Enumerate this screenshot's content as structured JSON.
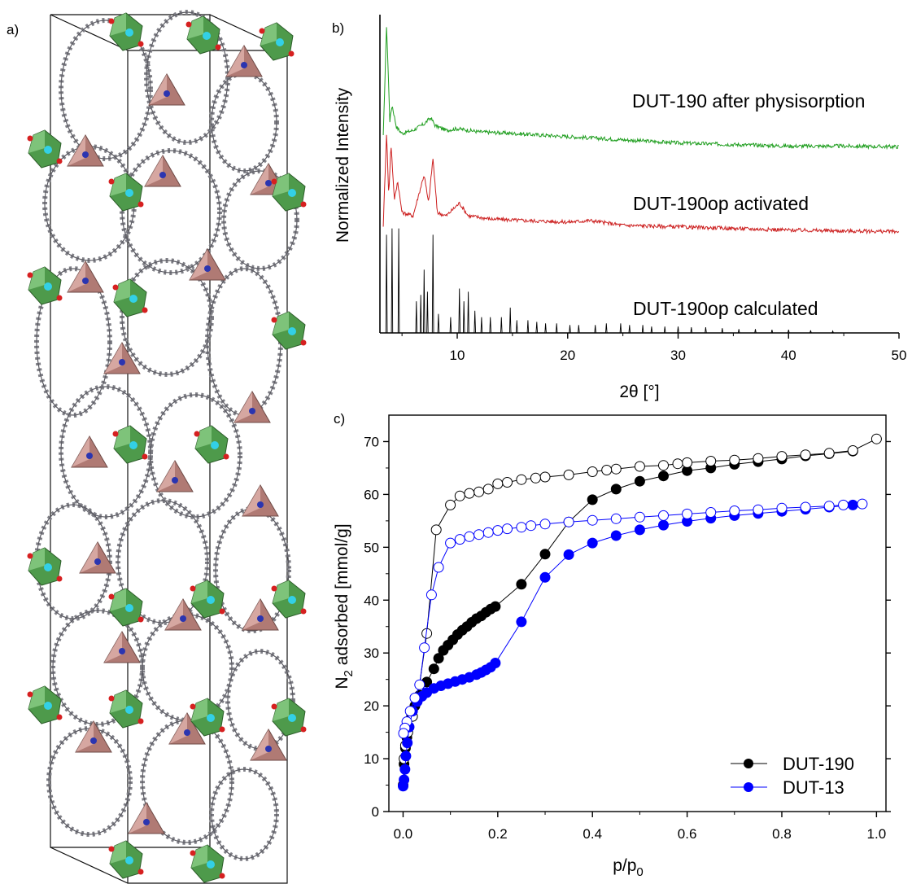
{
  "panel_labels": {
    "a": "a)",
    "b": "b)",
    "c": "c)"
  },
  "structure": {
    "colors": {
      "zr_octahedron": "#4e9a4b",
      "zr_face": "#8fd08a",
      "n_tetrahedron": "#b07a74",
      "n_face": "#f0c4c0",
      "carbon": "#7f7f86",
      "oxygen": "#d62020",
      "metal": "#33d0e6",
      "nitrogen": "#2b35b0",
      "cell_line": "#111111"
    }
  },
  "chart_data": [
    {
      "panel": "b)",
      "type": "line",
      "xlabel": "2θ [°]",
      "ylabel": "Normalized Intensity",
      "xlim": [
        3,
        50
      ],
      "xticks": [
        10,
        20,
        30,
        40,
        50
      ],
      "yticks_shown": false,
      "series": [
        {
          "name": "DUT-190 after physisorption",
          "color": "#1f9e1f",
          "x": [
            3.3,
            3.6,
            3.9,
            4.1,
            4.5,
            5.0,
            6.0,
            7.0,
            7.6,
            8.0,
            9.0,
            10.0,
            12.0,
            15.0,
            20.0,
            25.0,
            30.0,
            35.0,
            40.0,
            45.0,
            50.0
          ],
          "y": [
            0.62,
            0.97,
            0.67,
            0.72,
            0.65,
            0.63,
            0.64,
            0.66,
            0.68,
            0.655,
            0.64,
            0.645,
            0.635,
            0.63,
            0.62,
            0.61,
            0.6,
            0.595,
            0.59,
            0.59,
            0.588
          ]
        },
        {
          "name": "DUT-190op activated",
          "color": "#cc1f1f",
          "x": [
            3.3,
            3.6,
            3.8,
            4.0,
            4.3,
            4.6,
            5.0,
            6.0,
            7.0,
            7.4,
            7.8,
            8.2,
            9.0,
            10.2,
            11.0,
            13.0,
            16.0,
            20.0,
            22.0,
            25.0,
            30.0,
            35.0,
            40.0,
            45.0,
            50.0
          ],
          "y": [
            0.34,
            0.63,
            0.43,
            0.6,
            0.42,
            0.48,
            0.38,
            0.37,
            0.5,
            0.41,
            0.55,
            0.38,
            0.37,
            0.41,
            0.37,
            0.36,
            0.355,
            0.35,
            0.355,
            0.34,
            0.335,
            0.33,
            0.325,
            0.322,
            0.32
          ]
        },
        {
          "name": "DUT-190op calculated",
          "color": "#000000",
          "peaks_x": [
            3.6,
            4.1,
            4.7,
            6.3,
            6.7,
            7.0,
            7.3,
            7.8,
            8.3,
            9.4,
            10.2,
            10.6,
            11.0,
            11.6,
            12.2,
            13.0,
            14.0,
            14.8,
            15.4,
            16.4,
            17.2,
            18.0,
            19.0,
            20.2,
            21.0,
            22.5,
            23.5,
            24.8,
            25.6,
            26.8,
            27.6,
            28.8,
            30.0,
            31.2,
            32.5,
            34.0,
            35.5,
            37.0,
            38.5,
            40.0,
            42.0,
            44.0
          ],
          "peaks_y": [
            0.31,
            0.33,
            0.33,
            0.1,
            0.12,
            0.2,
            0.13,
            0.31,
            0.06,
            0.05,
            0.14,
            0.1,
            0.13,
            0.07,
            0.05,
            0.05,
            0.05,
            0.08,
            0.04,
            0.04,
            0.035,
            0.03,
            0.03,
            0.025,
            0.025,
            0.025,
            0.03,
            0.03,
            0.025,
            0.025,
            0.02,
            0.02,
            0.02,
            0.018,
            0.018,
            0.015,
            0.012,
            0.012,
            0.01,
            0.01,
            0.008,
            0.006
          ]
        }
      ]
    },
    {
      "panel": "c)",
      "type": "scatter",
      "xlabel": "p/p",
      "xlabel_sub": "0",
      "ylabel": "N",
      "ylabel_sub": "2",
      "ylabel_rest": " adsorbed [mmol/g]",
      "xlim": [
        -0.03,
        1.02
      ],
      "ylim": [
        0,
        75
      ],
      "xticks": [
        "0.0",
        "0.2",
        "0.4",
        "0.6",
        "0.8",
        "1.0"
      ],
      "yticks": [
        "0",
        "10",
        "20",
        "30",
        "40",
        "50",
        "60",
        "70"
      ],
      "legend_position": "bottom-right",
      "series": [
        {
          "name": "DUT-190",
          "color": "#000000",
          "branch": "adsorption",
          "x": [
            0.0,
            0.002,
            0.005,
            0.008,
            0.012,
            0.018,
            0.025,
            0.035,
            0.05,
            0.065,
            0.075,
            0.085,
            0.095,
            0.105,
            0.115,
            0.125,
            0.135,
            0.145,
            0.155,
            0.165,
            0.175,
            0.185,
            0.195,
            0.25,
            0.3,
            0.35,
            0.4,
            0.45,
            0.5,
            0.55,
            0.6,
            0.65,
            0.7,
            0.75,
            0.8,
            0.85,
            0.9,
            0.95
          ],
          "y": [
            5,
            9,
            12,
            14,
            16,
            18,
            20,
            22,
            24.5,
            27,
            29,
            30.5,
            31.5,
            32.5,
            33.5,
            34.3,
            35,
            35.8,
            36.5,
            37,
            37.7,
            38.3,
            38.8,
            43,
            48.7,
            54.8,
            59,
            61,
            62.5,
            63.5,
            64.5,
            65,
            65.7,
            66.2,
            66.7,
            67.3,
            67.7,
            68.2
          ]
        },
        {
          "name": "",
          "color": "#000000",
          "branch": "desorption",
          "x": [
            1.0,
            0.95,
            0.9,
            0.85,
            0.8,
            0.75,
            0.7,
            0.65,
            0.6,
            0.58,
            0.55,
            0.5,
            0.45,
            0.43,
            0.4,
            0.35,
            0.3,
            0.28,
            0.25,
            0.22,
            0.2,
            0.18,
            0.16,
            0.14,
            0.12,
            0.1,
            0.07,
            0.05,
            0.03,
            0.02,
            0.01,
            0.005,
            0.002
          ],
          "y": [
            70.5,
            68.3,
            67.8,
            67.5,
            67.2,
            66.8,
            66.5,
            66.3,
            66,
            65.8,
            65.5,
            65.3,
            64.8,
            64.6,
            64.3,
            63.7,
            63.3,
            63.1,
            62.8,
            62.3,
            62,
            61,
            60.5,
            60.2,
            59.7,
            58,
            53.3,
            33.7,
            21,
            18,
            15,
            12.5,
            10
          ]
        },
        {
          "name": "DUT-13",
          "color": "#0000ff",
          "branch": "adsorption",
          "x": [
            0.0,
            0.002,
            0.004,
            0.006,
            0.009,
            0.013,
            0.02,
            0.03,
            0.04,
            0.05,
            0.065,
            0.08,
            0.095,
            0.11,
            0.125,
            0.14,
            0.155,
            0.165,
            0.175,
            0.185,
            0.195,
            0.25,
            0.3,
            0.35,
            0.4,
            0.45,
            0.5,
            0.55,
            0.6,
            0.65,
            0.7,
            0.75,
            0.8,
            0.85,
            0.9,
            0.95
          ],
          "y": [
            4.8,
            6,
            8,
            10.5,
            13,
            16,
            19,
            20.8,
            21.8,
            22.5,
            23.3,
            23.8,
            24.2,
            24.6,
            25,
            25.4,
            25.9,
            26.3,
            26.8,
            27.3,
            28.1,
            35.9,
            44.3,
            48.6,
            50.8,
            52.2,
            53.3,
            54.2,
            54.9,
            55.5,
            56,
            56.4,
            56.8,
            57.2,
            57.6,
            58
          ]
        },
        {
          "name": "",
          "color": "#0000ff",
          "branch": "desorption",
          "x": [
            0.97,
            0.93,
            0.9,
            0.85,
            0.8,
            0.75,
            0.7,
            0.65,
            0.6,
            0.55,
            0.5,
            0.45,
            0.4,
            0.35,
            0.3,
            0.27,
            0.25,
            0.22,
            0.2,
            0.18,
            0.16,
            0.14,
            0.12,
            0.1,
            0.075,
            0.06,
            0.045,
            0.035,
            0.025,
            0.015,
            0.008,
            0.004,
            0.001
          ],
          "y": [
            58.2,
            58,
            57.8,
            57.6,
            57.4,
            57.1,
            56.9,
            56.6,
            56.3,
            56,
            55.7,
            55.4,
            55.1,
            54.8,
            54.4,
            54.1,
            53.8,
            53.5,
            53.2,
            52.8,
            52.4,
            52,
            51.5,
            50.8,
            46.2,
            41,
            31,
            24,
            21.5,
            19,
            17,
            15.8,
            14.8
          ]
        }
      ]
    }
  ]
}
